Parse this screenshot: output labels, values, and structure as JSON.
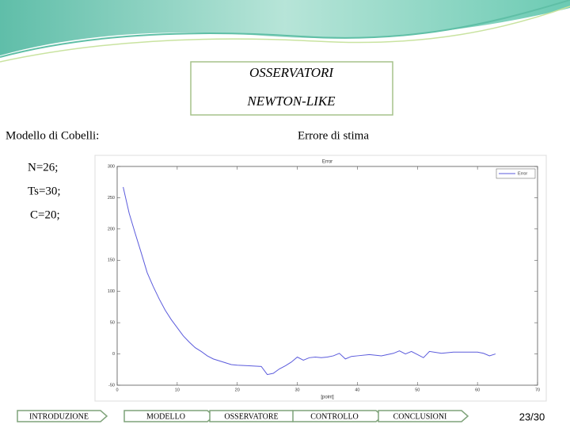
{
  "slide": {
    "title_lines": [
      "OSSERVATORI",
      "NEWTON-LIKE"
    ],
    "left_heading": "Modello di Cobelli:",
    "right_heading": "Errore di stima",
    "params": [
      "N=26;",
      "Ts=30;",
      "C=20;"
    ],
    "nav": [
      "INTRODUZIONE",
      "MODELLO",
      "OSSERVATORE",
      "CONTROLLO",
      "CONCLUSIONI"
    ],
    "page": "23/30"
  },
  "chart_data": {
    "type": "line",
    "title": "Error",
    "x_label": "[point]",
    "x": [
      1,
      2,
      3,
      4,
      5,
      6,
      7,
      8,
      9,
      10,
      11,
      12,
      13,
      14,
      15,
      16,
      17,
      18,
      19,
      20,
      22,
      24,
      25,
      26,
      27,
      28,
      29,
      30,
      31,
      32,
      33,
      34,
      35,
      36,
      37,
      38,
      39,
      40,
      42,
      44,
      46,
      47,
      48,
      49,
      50,
      51,
      52,
      54,
      56,
      58,
      60,
      61,
      62,
      63
    ],
    "series": [
      {
        "name": "Error",
        "color": "#5b5bdc",
        "values": [
          267,
          225,
          193,
          162,
          130,
          108,
          88,
          70,
          55,
          42,
          29,
          19,
          10,
          4,
          -3,
          -8,
          -11,
          -14,
          -17,
          -18,
          -19,
          -20,
          -33,
          -31,
          -24,
          -19,
          -13,
          -5,
          -10,
          -6,
          -5,
          -6,
          -5,
          -3,
          1,
          -8,
          -4,
          -3,
          -1,
          -3,
          1,
          5,
          0,
          4,
          -1,
          -6,
          4,
          1,
          3,
          3,
          3,
          1,
          -3,
          0
        ]
      }
    ],
    "xlim": [
      0,
      70
    ],
    "xticks": [
      0,
      10,
      20,
      30,
      40,
      50,
      60,
      70
    ],
    "ylim": [
      -50,
      300
    ],
    "yticks": [
      -50,
      0,
      50,
      100,
      150,
      200,
      250,
      300
    ],
    "grid": false,
    "legend": "top-right"
  }
}
